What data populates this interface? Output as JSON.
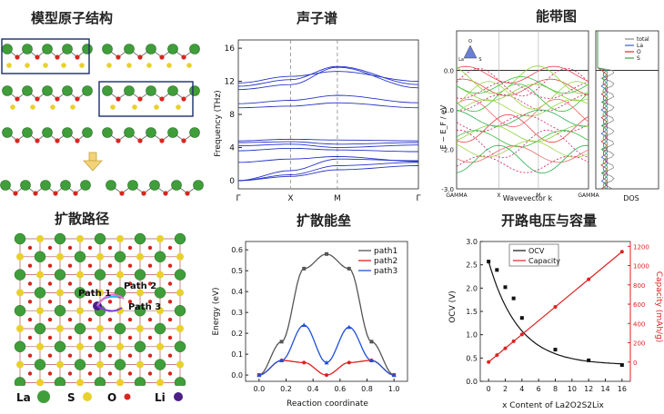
{
  "titles": {
    "structure": "模型原子结构",
    "phonon": "声子谱",
    "bands": "能带图",
    "diffusion_path": "扩散路径",
    "barrier": "扩散能垒",
    "ocv": "开路电压与容量"
  },
  "atoms_legend": [
    {
      "label": "La",
      "color": "#3f9e3a"
    },
    {
      "label": "S",
      "color": "#e8d12b"
    },
    {
      "label": "O",
      "color": "#d8261e"
    },
    {
      "label": "Li",
      "color": "#5a2a8c"
    }
  ],
  "path_labels": [
    "Path 1",
    "Path 2",
    "Path 3"
  ],
  "chart_data": [
    {
      "type": "line",
      "name": "phonon",
      "ylabel": "Frequency (THz)",
      "x_ticks": [
        "Γ",
        "X",
        "M",
        "Γ"
      ],
      "yticks": [
        0,
        4,
        8,
        12,
        16
      ],
      "ylim": [
        -1,
        17
      ],
      "bands": [
        [
          0,
          0.5,
          1.3,
          1.8
        ],
        [
          0,
          0.7,
          1.8,
          2.2
        ],
        [
          0,
          1.2,
          2.6,
          2.4
        ],
        [
          2.2,
          2.6,
          2.9,
          2.3
        ],
        [
          3.6,
          3.9,
          3.7,
          3.5
        ],
        [
          4.2,
          4.4,
          4.0,
          4.3
        ],
        [
          4.6,
          4.7,
          4.4,
          4.6
        ],
        [
          4.8,
          5.0,
          4.9,
          4.8
        ],
        [
          8.8,
          9.0,
          9.4,
          8.8
        ],
        [
          9.3,
          9.7,
          10.3,
          9.4
        ],
        [
          11.0,
          11.6,
          13.7,
          11.2
        ],
        [
          11.4,
          12.2,
          13.8,
          11.6
        ],
        [
          11.8,
          12.6,
          13.2,
          12.0
        ]
      ],
      "color": "#2633c8",
      "grid": false
    },
    {
      "type": "line",
      "name": "bands",
      "ylabel": "E − E_F / eV",
      "xlabel": "Wavevector k",
      "x_ticks": [
        "GAMMA",
        "X",
        "M",
        "GAMMA"
      ],
      "yticks": [
        0.0,
        -1.0,
        -2.0,
        -3.0
      ],
      "ylim": [
        -3.0,
        1.0
      ],
      "dos_xlabel": "DOS",
      "dos_legend": [
        {
          "name": "total",
          "color": "#888888"
        },
        {
          "name": "La",
          "color": "#3b5bd6"
        },
        {
          "name": "O",
          "color": "#d22a2a"
        },
        {
          "name": "S",
          "color": "#2ea84a"
        }
      ],
      "triangle_labels": [
        "O",
        "La",
        "S"
      ]
    },
    {
      "type": "line",
      "name": "barrier",
      "xlabel": "Reaction coordinate",
      "ylabel": "Energy (eV)",
      "xlim": [
        -0.1,
        1.1
      ],
      "ylim": [
        -0.03,
        0.64
      ],
      "xticks": [
        0.0,
        0.2,
        0.4,
        0.6,
        0.8,
        1.0
      ],
      "yticks": [
        0.0,
        0.1,
        0.2,
        0.3,
        0.4,
        0.5,
        0.6
      ],
      "legend": "top-right",
      "series": [
        {
          "name": "path1",
          "color": "#555555",
          "marker": "square",
          "x": [
            0.0,
            0.167,
            0.333,
            0.5,
            0.667,
            0.833,
            1.0
          ],
          "y": [
            0.0,
            0.16,
            0.51,
            0.58,
            0.51,
            0.16,
            0.0
          ]
        },
        {
          "name": "path2",
          "color": "#e02020",
          "marker": "circle",
          "x": [
            0.0,
            0.167,
            0.333,
            0.5,
            0.667,
            0.833,
            1.0
          ],
          "y": [
            0.0,
            0.07,
            0.06,
            0.0,
            0.06,
            0.07,
            0.0
          ]
        },
        {
          "name": "path3",
          "color": "#1f50d8",
          "marker": "triangle",
          "x": [
            0.0,
            0.167,
            0.333,
            0.5,
            0.667,
            0.833,
            1.0
          ],
          "y": [
            0.0,
            0.07,
            0.24,
            0.06,
            0.23,
            0.07,
            0.0
          ]
        }
      ]
    },
    {
      "type": "line",
      "name": "ocv",
      "xlabel": "x Content of La2O2S2Lix",
      "ylabel": "OCV (V)",
      "y2label": "Capacity (mAh/g)",
      "xlim": [
        -1,
        17
      ],
      "ylim": [
        0,
        3.0
      ],
      "y2lim": [
        -200,
        1250
      ],
      "xticks": [
        0,
        2,
        4,
        6,
        8,
        10,
        12,
        14,
        16
      ],
      "yticks": [
        0.0,
        0.5,
        1.0,
        1.5,
        2.0,
        2.5,
        3.0
      ],
      "y2ticks": [
        0,
        200,
        400,
        600,
        800,
        1000,
        1200
      ],
      "legend": "top-left",
      "series": [
        {
          "name": "OCV",
          "color": "#111111",
          "marker": "square",
          "axis": "left",
          "x": [
            0,
            1,
            2,
            3,
            4,
            8,
            12,
            16
          ],
          "y": [
            2.57,
            2.39,
            2.02,
            1.78,
            1.36,
            0.68,
            0.45,
            0.35
          ]
        },
        {
          "name": "Capacity",
          "color": "#e02020",
          "marker": "circle",
          "axis": "right",
          "x": [
            0,
            1,
            2,
            3,
            4,
            8,
            12,
            16
          ],
          "y": [
            0,
            72,
            143,
            215,
            286,
            572,
            858,
            1144
          ]
        }
      ]
    }
  ]
}
